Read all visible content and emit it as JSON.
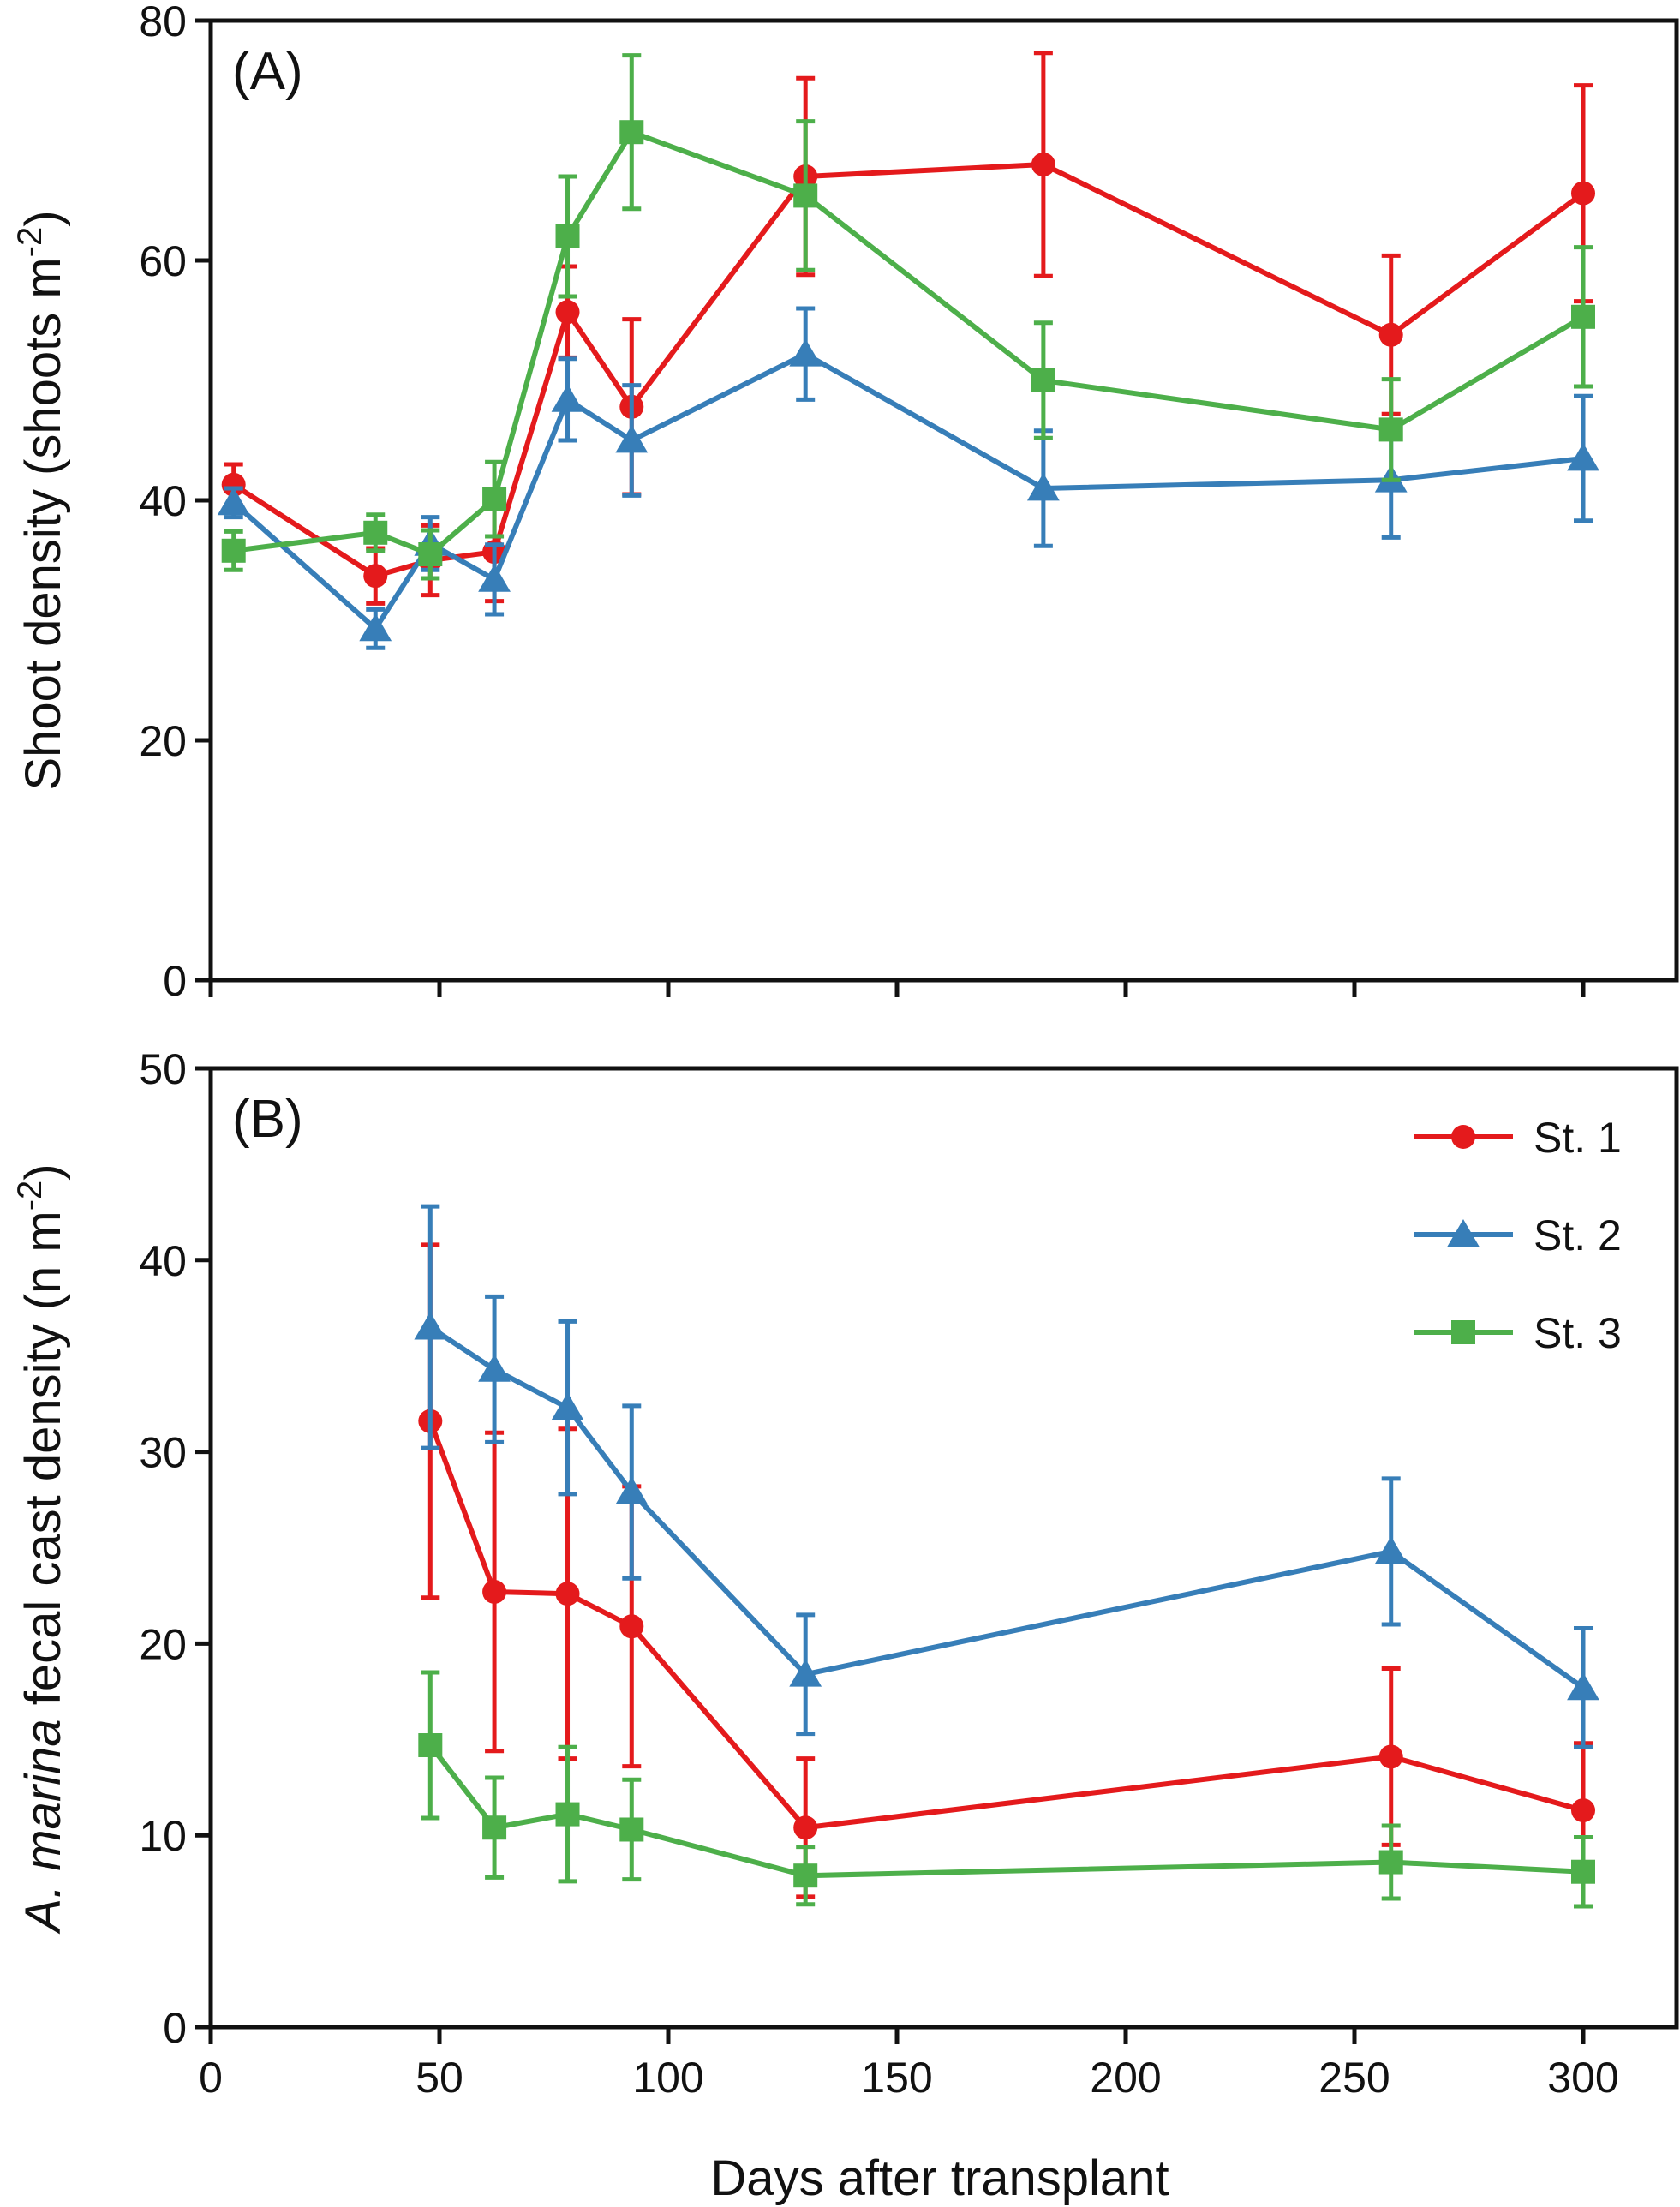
{
  "chart_data": [
    {
      "type": "line",
      "panel_label": "(A)",
      "ylabel": "Shoot density (shoots m",
      "ylabel_sup": "-2",
      "ylabel_close": ")",
      "xlim": [
        0,
        320
      ],
      "ylim": [
        0,
        80
      ],
      "yticks": [
        "0",
        "20",
        "40",
        "60",
        "80"
      ],
      "x_tick_values": [
        0,
        50,
        100,
        150,
        200,
        250,
        300
      ],
      "x_tick_labels_visible": false,
      "grid": false,
      "series": [
        {
          "name": "St. 1",
          "color": "#e41a1c",
          "marker": "circle",
          "x": [
            5,
            36,
            48,
            62,
            78,
            92,
            130,
            182,
            258,
            300
          ],
          "y": [
            41.3,
            33.7,
            35.0,
            35.7,
            55.7,
            47.8,
            67.0,
            68.0,
            53.8,
            65.6
          ],
          "err": [
            1.7,
            2.3,
            2.9,
            4.1,
            3.8,
            7.3,
            8.2,
            9.3,
            6.6,
            9.0
          ]
        },
        {
          "name": "St. 2",
          "color": "#377eb8",
          "marker": "triangle",
          "x": [
            5,
            36,
            48,
            62,
            78,
            92,
            130,
            182,
            258,
            300
          ],
          "y": [
            39.8,
            29.3,
            36.4,
            33.4,
            48.4,
            45.0,
            52.2,
            41.0,
            41.7,
            43.5
          ],
          "err": [
            1.2,
            1.6,
            2.2,
            2.9,
            3.4,
            4.6,
            3.8,
            4.8,
            4.8,
            5.2
          ]
        },
        {
          "name": "St. 3",
          "color": "#4daf4a",
          "marker": "square",
          "x": [
            5,
            36,
            48,
            62,
            78,
            92,
            130,
            182,
            258,
            300
          ],
          "y": [
            35.8,
            37.3,
            35.5,
            40.1,
            62.0,
            70.7,
            65.4,
            50.0,
            45.9,
            55.3
          ],
          "err": [
            1.6,
            1.5,
            2.0,
            3.1,
            5.0,
            6.4,
            6.2,
            4.8,
            4.2,
            5.8
          ]
        }
      ]
    },
    {
      "type": "line",
      "panel_label": "(B)",
      "ylabel_italic": "A. marina",
      "ylabel": " fecal cast density (n m",
      "ylabel_sup": "-2",
      "ylabel_close": ")",
      "xlabel": "Days after transplant",
      "xlim": [
        0,
        320
      ],
      "ylim": [
        0,
        50
      ],
      "yticks": [
        "0",
        "10",
        "20",
        "30",
        "40",
        "50"
      ],
      "x_tick_values": [
        0,
        50,
        100,
        150,
        200,
        250,
        300
      ],
      "xticks": [
        "0",
        "50",
        "100",
        "150",
        "200",
        "250",
        "300"
      ],
      "legend_position": "top-right",
      "grid": false,
      "series": [
        {
          "name": "St. 1",
          "color": "#e41a1c",
          "marker": "circle",
          "x": [
            48,
            62,
            78,
            92,
            130,
            258,
            300
          ],
          "y": [
            31.6,
            22.7,
            22.6,
            20.9,
            10.4,
            14.1,
            11.3
          ],
          "err": [
            9.2,
            8.3,
            8.6,
            7.3,
            3.6,
            4.6,
            3.5
          ]
        },
        {
          "name": "St. 2",
          "color": "#377eb8",
          "marker": "triangle",
          "x": [
            48,
            62,
            78,
            92,
            130,
            258,
            300
          ],
          "y": [
            36.5,
            34.3,
            32.3,
            27.9,
            18.4,
            24.8,
            17.7
          ],
          "err": [
            6.3,
            3.8,
            4.5,
            4.5,
            3.1,
            3.8,
            3.1
          ]
        },
        {
          "name": "St. 3",
          "color": "#4daf4a",
          "marker": "square",
          "x": [
            48,
            62,
            78,
            92,
            130,
            258,
            300
          ],
          "y": [
            14.7,
            10.4,
            11.1,
            10.3,
            7.9,
            8.6,
            8.1
          ],
          "err": [
            3.8,
            2.6,
            3.5,
            2.6,
            1.5,
            1.9,
            1.8
          ]
        }
      ]
    }
  ]
}
